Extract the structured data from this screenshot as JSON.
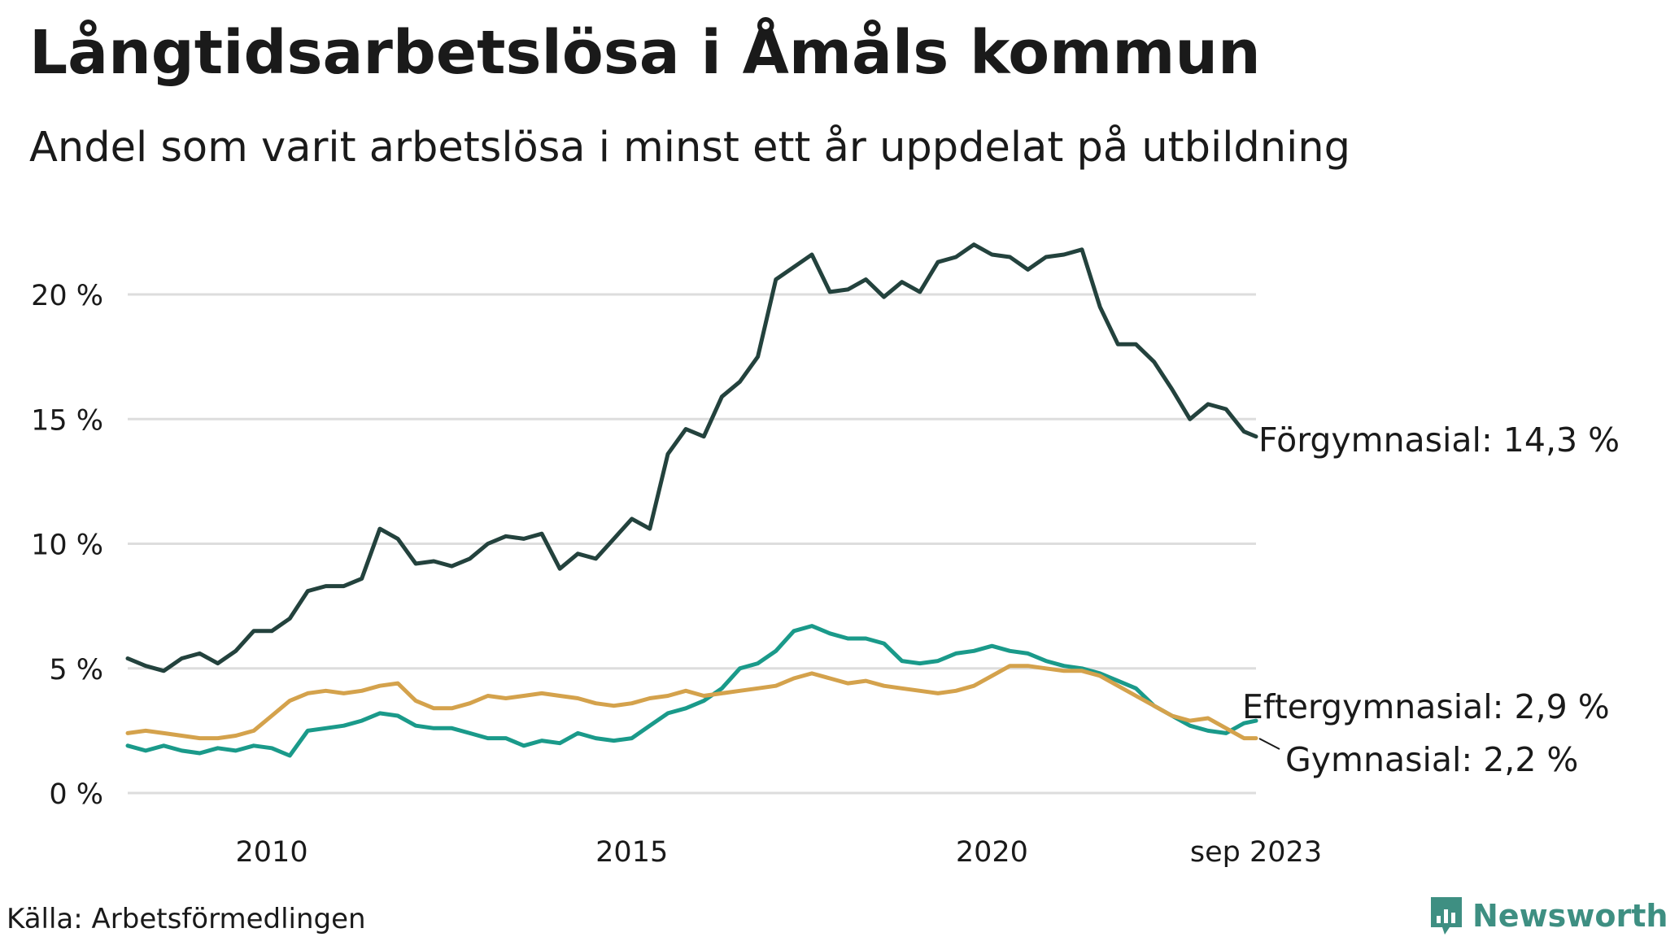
{
  "header": {
    "title": "Långtidsarbetslösa i Åmåls kommun",
    "subtitle": "Andel som varit arbetslösa i minst ett år uppdelat på utbildning"
  },
  "footer": {
    "source": "Källa: Arbetsförmedlingen",
    "brand": "Newsworthy"
  },
  "colors": {
    "forgymnasial": "#23423d",
    "eftergymnasial": "#1a9a8a",
    "gymnasial": "#d4a24c",
    "grid": "#dddddd"
  },
  "chart_data": {
    "type": "line",
    "title": "Långtidsarbetslösa i Åmåls kommun",
    "xlabel": "",
    "ylabel": "",
    "x_range": [
      2008.0,
      2023.667
    ],
    "ylim": [
      0,
      23
    ],
    "y_ticks": [
      0,
      5,
      10,
      15,
      20
    ],
    "y_tick_labels": [
      "0 %",
      "5 %",
      "10 %",
      "15 %",
      "20 %"
    ],
    "x_ticks": [
      2010,
      2015,
      2020,
      2023.667
    ],
    "x_tick_labels": [
      "2010",
      "2015",
      "2020",
      "sep 2023"
    ],
    "grid": true,
    "legend": "end-of-line labels",
    "series": [
      {
        "key": "forgymnasial",
        "name": "Förgymnasial",
        "label": "Förgymnasial: 14,3 %",
        "color": "#23423d",
        "points": [
          [
            2008.0,
            5.4
          ],
          [
            2008.25,
            5.1
          ],
          [
            2008.5,
            4.9
          ],
          [
            2008.75,
            5.4
          ],
          [
            2009.0,
            5.6
          ],
          [
            2009.25,
            5.2
          ],
          [
            2009.5,
            5.7
          ],
          [
            2009.75,
            6.5
          ],
          [
            2010.0,
            6.5
          ],
          [
            2010.25,
            7.0
          ],
          [
            2010.5,
            8.1
          ],
          [
            2010.75,
            8.3
          ],
          [
            2011.0,
            8.3
          ],
          [
            2011.25,
            8.6
          ],
          [
            2011.5,
            10.6
          ],
          [
            2011.75,
            10.2
          ],
          [
            2012.0,
            9.2
          ],
          [
            2012.25,
            9.3
          ],
          [
            2012.5,
            9.1
          ],
          [
            2012.75,
            9.4
          ],
          [
            2013.0,
            10.0
          ],
          [
            2013.25,
            10.3
          ],
          [
            2013.5,
            10.2
          ],
          [
            2013.75,
            10.4
          ],
          [
            2014.0,
            9.0
          ],
          [
            2014.25,
            9.6
          ],
          [
            2014.5,
            9.4
          ],
          [
            2014.75,
            10.2
          ],
          [
            2015.0,
            11.0
          ],
          [
            2015.25,
            10.6
          ],
          [
            2015.5,
            13.6
          ],
          [
            2015.75,
            14.6
          ],
          [
            2016.0,
            14.3
          ],
          [
            2016.25,
            15.9
          ],
          [
            2016.5,
            16.5
          ],
          [
            2016.75,
            17.5
          ],
          [
            2017.0,
            20.6
          ],
          [
            2017.25,
            21.1
          ],
          [
            2017.5,
            21.6
          ],
          [
            2017.75,
            20.1
          ],
          [
            2018.0,
            20.2
          ],
          [
            2018.25,
            20.6
          ],
          [
            2018.5,
            19.9
          ],
          [
            2018.75,
            20.5
          ],
          [
            2019.0,
            20.1
          ],
          [
            2019.25,
            21.3
          ],
          [
            2019.5,
            21.5
          ],
          [
            2019.75,
            22.0
          ],
          [
            2020.0,
            21.6
          ],
          [
            2020.25,
            21.5
          ],
          [
            2020.5,
            21.0
          ],
          [
            2020.75,
            21.5
          ],
          [
            2021.0,
            21.6
          ],
          [
            2021.25,
            21.8
          ],
          [
            2021.5,
            19.5
          ],
          [
            2021.75,
            18.0
          ],
          [
            2022.0,
            18.0
          ],
          [
            2022.25,
            17.3
          ],
          [
            2022.5,
            16.2
          ],
          [
            2022.75,
            15.0
          ],
          [
            2023.0,
            15.6
          ],
          [
            2023.25,
            15.4
          ],
          [
            2023.5,
            14.5
          ],
          [
            2023.667,
            14.3
          ]
        ]
      },
      {
        "key": "eftergymnasial",
        "name": "Eftergymnasial",
        "label": "Eftergymnasial:  2,9 %",
        "color": "#1a9a8a",
        "points": [
          [
            2008.0,
            1.9
          ],
          [
            2008.25,
            1.7
          ],
          [
            2008.5,
            1.9
          ],
          [
            2008.75,
            1.7
          ],
          [
            2009.0,
            1.6
          ],
          [
            2009.25,
            1.8
          ],
          [
            2009.5,
            1.7
          ],
          [
            2009.75,
            1.9
          ],
          [
            2010.0,
            1.8
          ],
          [
            2010.25,
            1.5
          ],
          [
            2010.5,
            2.5
          ],
          [
            2010.75,
            2.6
          ],
          [
            2011.0,
            2.7
          ],
          [
            2011.25,
            2.9
          ],
          [
            2011.5,
            3.2
          ],
          [
            2011.75,
            3.1
          ],
          [
            2012.0,
            2.7
          ],
          [
            2012.25,
            2.6
          ],
          [
            2012.5,
            2.6
          ],
          [
            2012.75,
            2.4
          ],
          [
            2013.0,
            2.2
          ],
          [
            2013.25,
            2.2
          ],
          [
            2013.5,
            1.9
          ],
          [
            2013.75,
            2.1
          ],
          [
            2014.0,
            2.0
          ],
          [
            2014.25,
            2.4
          ],
          [
            2014.5,
            2.2
          ],
          [
            2014.75,
            2.1
          ],
          [
            2015.0,
            2.2
          ],
          [
            2015.25,
            2.7
          ],
          [
            2015.5,
            3.2
          ],
          [
            2015.75,
            3.4
          ],
          [
            2016.0,
            3.7
          ],
          [
            2016.25,
            4.2
          ],
          [
            2016.5,
            5.0
          ],
          [
            2016.75,
            5.2
          ],
          [
            2017.0,
            5.7
          ],
          [
            2017.25,
            6.5
          ],
          [
            2017.5,
            6.7
          ],
          [
            2017.75,
            6.4
          ],
          [
            2018.0,
            6.2
          ],
          [
            2018.25,
            6.2
          ],
          [
            2018.5,
            6.0
          ],
          [
            2018.75,
            5.3
          ],
          [
            2019.0,
            5.2
          ],
          [
            2019.25,
            5.3
          ],
          [
            2019.5,
            5.6
          ],
          [
            2019.75,
            5.7
          ],
          [
            2020.0,
            5.9
          ],
          [
            2020.25,
            5.7
          ],
          [
            2020.5,
            5.6
          ],
          [
            2020.75,
            5.3
          ],
          [
            2021.0,
            5.1
          ],
          [
            2021.25,
            5.0
          ],
          [
            2021.5,
            4.8
          ],
          [
            2021.75,
            4.5
          ],
          [
            2022.0,
            4.2
          ],
          [
            2022.25,
            3.5
          ],
          [
            2022.5,
            3.1
          ],
          [
            2022.75,
            2.7
          ],
          [
            2023.0,
            2.5
          ],
          [
            2023.25,
            2.4
          ],
          [
            2023.5,
            2.8
          ],
          [
            2023.667,
            2.9
          ]
        ]
      },
      {
        "key": "gymnasial",
        "name": "Gymnasial",
        "label": "Gymnasial:  2,2 %",
        "color": "#d4a24c",
        "points": [
          [
            2008.0,
            2.4
          ],
          [
            2008.25,
            2.5
          ],
          [
            2008.5,
            2.4
          ],
          [
            2008.75,
            2.3
          ],
          [
            2009.0,
            2.2
          ],
          [
            2009.25,
            2.2
          ],
          [
            2009.5,
            2.3
          ],
          [
            2009.75,
            2.5
          ],
          [
            2010.0,
            3.1
          ],
          [
            2010.25,
            3.7
          ],
          [
            2010.5,
            4.0
          ],
          [
            2010.75,
            4.1
          ],
          [
            2011.0,
            4.0
          ],
          [
            2011.25,
            4.1
          ],
          [
            2011.5,
            4.3
          ],
          [
            2011.75,
            4.4
          ],
          [
            2012.0,
            3.7
          ],
          [
            2012.25,
            3.4
          ],
          [
            2012.5,
            3.4
          ],
          [
            2012.75,
            3.6
          ],
          [
            2013.0,
            3.9
          ],
          [
            2013.25,
            3.8
          ],
          [
            2013.5,
            3.9
          ],
          [
            2013.75,
            4.0
          ],
          [
            2014.0,
            3.9
          ],
          [
            2014.25,
            3.8
          ],
          [
            2014.5,
            3.6
          ],
          [
            2014.75,
            3.5
          ],
          [
            2015.0,
            3.6
          ],
          [
            2015.25,
            3.8
          ],
          [
            2015.5,
            3.9
          ],
          [
            2015.75,
            4.1
          ],
          [
            2016.0,
            3.9
          ],
          [
            2016.25,
            4.0
          ],
          [
            2016.5,
            4.1
          ],
          [
            2016.75,
            4.2
          ],
          [
            2017.0,
            4.3
          ],
          [
            2017.25,
            4.6
          ],
          [
            2017.5,
            4.8
          ],
          [
            2017.75,
            4.6
          ],
          [
            2018.0,
            4.4
          ],
          [
            2018.25,
            4.5
          ],
          [
            2018.5,
            4.3
          ],
          [
            2018.75,
            4.2
          ],
          [
            2019.0,
            4.1
          ],
          [
            2019.25,
            4.0
          ],
          [
            2019.5,
            4.1
          ],
          [
            2019.75,
            4.3
          ],
          [
            2020.0,
            4.7
          ],
          [
            2020.25,
            5.1
          ],
          [
            2020.5,
            5.1
          ],
          [
            2020.75,
            5.0
          ],
          [
            2021.0,
            4.9
          ],
          [
            2021.25,
            4.9
          ],
          [
            2021.5,
            4.7
          ],
          [
            2021.75,
            4.3
          ],
          [
            2022.0,
            3.9
          ],
          [
            2022.25,
            3.5
          ],
          [
            2022.5,
            3.1
          ],
          [
            2022.75,
            2.9
          ],
          [
            2023.0,
            3.0
          ],
          [
            2023.25,
            2.6
          ],
          [
            2023.5,
            2.2
          ],
          [
            2023.667,
            2.2
          ]
        ]
      }
    ]
  }
}
